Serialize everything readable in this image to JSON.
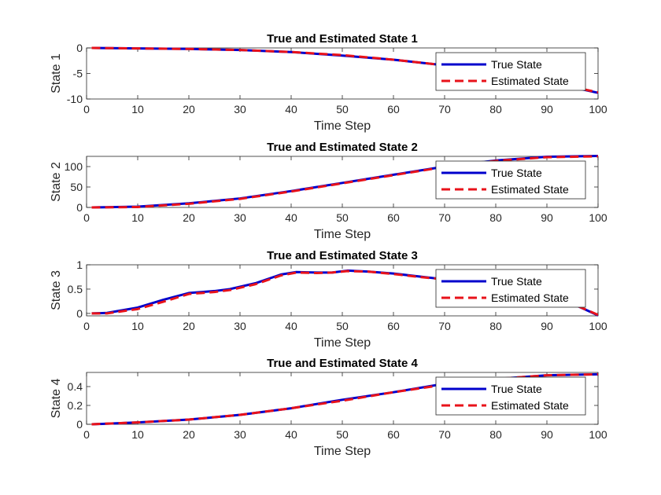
{
  "chart_data": [
    {
      "type": "line",
      "title": "True and Estimated State 1",
      "xlabel": "Time Step",
      "ylabel": "State 1",
      "xlim": [
        0,
        100
      ],
      "ylim": [
        -10,
        0
      ],
      "xticks": [
        0,
        10,
        20,
        30,
        40,
        50,
        60,
        70,
        80,
        90,
        100
      ],
      "yticks": [
        -10,
        -5,
        0
      ],
      "grid": false,
      "legend_position": "top-right",
      "series": [
        {
          "name": "True State",
          "color": "#0000cc",
          "style": "solid",
          "x": [
            1,
            10,
            20,
            30,
            40,
            50,
            60,
            70,
            80,
            90,
            100
          ],
          "y": [
            0,
            -0.1,
            -0.2,
            -0.4,
            -0.8,
            -1.5,
            -2.3,
            -3.4,
            -4.7,
            -6.6,
            -8.8
          ]
        },
        {
          "name": "Estimated State",
          "color": "#e8121a",
          "style": "dashed",
          "x": [
            1,
            10,
            20,
            30,
            40,
            50,
            60,
            70,
            80,
            90,
            100
          ],
          "y": [
            0,
            -0.1,
            -0.2,
            -0.4,
            -0.8,
            -1.4,
            -2.3,
            -3.4,
            -4.8,
            -6.6,
            -8.7
          ]
        }
      ]
    },
    {
      "type": "line",
      "title": "True and Estimated State 2",
      "xlabel": "Time Step",
      "ylabel": "State 2",
      "xlim": [
        0,
        100
      ],
      "ylim": [
        0,
        125
      ],
      "xticks": [
        0,
        10,
        20,
        30,
        40,
        50,
        60,
        70,
        80,
        90,
        100
      ],
      "yticks": [
        0,
        50,
        100
      ],
      "grid": false,
      "legend_position": "top-right",
      "series": [
        {
          "name": "True State",
          "color": "#0000cc",
          "style": "solid",
          "x": [
            1,
            10,
            20,
            30,
            40,
            50,
            60,
            70,
            80,
            90,
            100
          ],
          "y": [
            0,
            2,
            10,
            22,
            40,
            60,
            80,
            100,
            115,
            124,
            126
          ]
        },
        {
          "name": "Estimated State",
          "color": "#e8121a",
          "style": "dashed",
          "x": [
            1,
            10,
            20,
            30,
            40,
            50,
            60,
            70,
            80,
            90,
            100
          ],
          "y": [
            0,
            1,
            9,
            21,
            39,
            59,
            79,
            99,
            114,
            123,
            125
          ]
        }
      ]
    },
    {
      "type": "line",
      "title": "True and Estimated State 3",
      "xlabel": "Time Step",
      "ylabel": "State 3",
      "xlim": [
        0,
        100
      ],
      "ylim": [
        -0.05,
        1
      ],
      "xticks": [
        0,
        10,
        20,
        30,
        40,
        50,
        60,
        70,
        80,
        90,
        100
      ],
      "yticks": [
        0,
        0.5,
        1
      ],
      "grid": false,
      "legend_position": "top-right",
      "series": [
        {
          "name": "True State",
          "color": "#0000cc",
          "style": "solid",
          "x": [
            1,
            4,
            10,
            15,
            20,
            25,
            28,
            33,
            38,
            41,
            45,
            48,
            51,
            55,
            60,
            65,
            70,
            80,
            90,
            95,
            100
          ],
          "y": [
            0,
            0.01,
            0.12,
            0.28,
            0.42,
            0.46,
            0.5,
            0.62,
            0.8,
            0.85,
            0.84,
            0.84,
            0.88,
            0.86,
            0.82,
            0.76,
            0.7,
            0.55,
            0.38,
            0.2,
            -0.04
          ]
        },
        {
          "name": "Estimated State",
          "color": "#e8121a",
          "style": "dashed",
          "x": [
            1,
            4,
            10,
            15,
            20,
            25,
            28,
            33,
            38,
            41,
            45,
            48,
            51,
            55,
            60,
            65,
            70,
            80,
            90,
            95,
            100
          ],
          "y": [
            0,
            0,
            0.09,
            0.24,
            0.4,
            0.44,
            0.48,
            0.6,
            0.78,
            0.84,
            0.83,
            0.84,
            0.87,
            0.86,
            0.81,
            0.75,
            0.7,
            0.55,
            0.38,
            0.2,
            -0.03
          ]
        }
      ]
    },
    {
      "type": "line",
      "title": "True and Estimated State 4",
      "xlabel": "Time Step",
      "ylabel": "State 4",
      "xlim": [
        0,
        100
      ],
      "ylim": [
        0,
        0.55
      ],
      "xticks": [
        0,
        10,
        20,
        30,
        40,
        50,
        60,
        70,
        80,
        90,
        100
      ],
      "yticks": [
        0,
        0.2,
        0.4
      ],
      "grid": false,
      "legend_position": "top-right",
      "series": [
        {
          "name": "True State",
          "color": "#0000cc",
          "style": "solid",
          "x": [
            1,
            10,
            20,
            30,
            40,
            50,
            60,
            70,
            80,
            90,
            100
          ],
          "y": [
            0,
            0.02,
            0.05,
            0.1,
            0.17,
            0.26,
            0.34,
            0.43,
            0.48,
            0.52,
            0.53
          ]
        },
        {
          "name": "Estimated State",
          "color": "#e8121a",
          "style": "dashed",
          "x": [
            1,
            10,
            20,
            30,
            40,
            50,
            60,
            70,
            80,
            90,
            100
          ],
          "y": [
            0,
            0.02,
            0.05,
            0.1,
            0.17,
            0.25,
            0.34,
            0.42,
            0.48,
            0.52,
            0.53
          ]
        }
      ]
    }
  ]
}
